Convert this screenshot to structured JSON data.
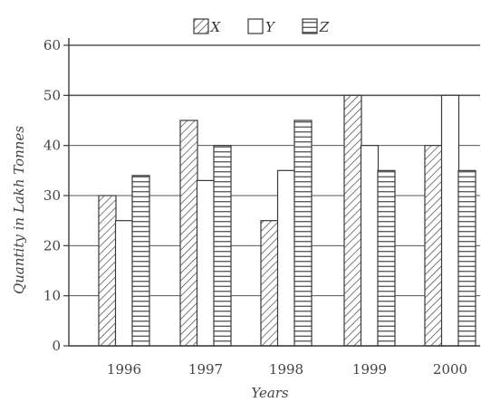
{
  "chart_data": {
    "type": "bar",
    "title": "",
    "xlabel": "Years",
    "ylabel": "Quantity in Lakh Tonnes",
    "categories": [
      "1996",
      "1997",
      "1998",
      "1999",
      "2000"
    ],
    "series": [
      {
        "name": "X",
        "values": [
          30,
          45,
          25,
          50,
          40
        ],
        "pattern": "diagonal-hatch"
      },
      {
        "name": "Y",
        "values": [
          25,
          33,
          35,
          40,
          50
        ],
        "pattern": "none"
      },
      {
        "name": "Z",
        "values": [
          34,
          40,
          45,
          35,
          35
        ],
        "pattern": "horizontal-lines"
      }
    ],
    "ylim": [
      0,
      60
    ],
    "yticks": [
      0,
      10,
      20,
      30,
      40,
      50,
      60
    ],
    "grid": true,
    "legend_position": "top"
  },
  "colors": {
    "ink": "#3a3a3a",
    "grid": "#555555",
    "background": "#ffffff"
  }
}
